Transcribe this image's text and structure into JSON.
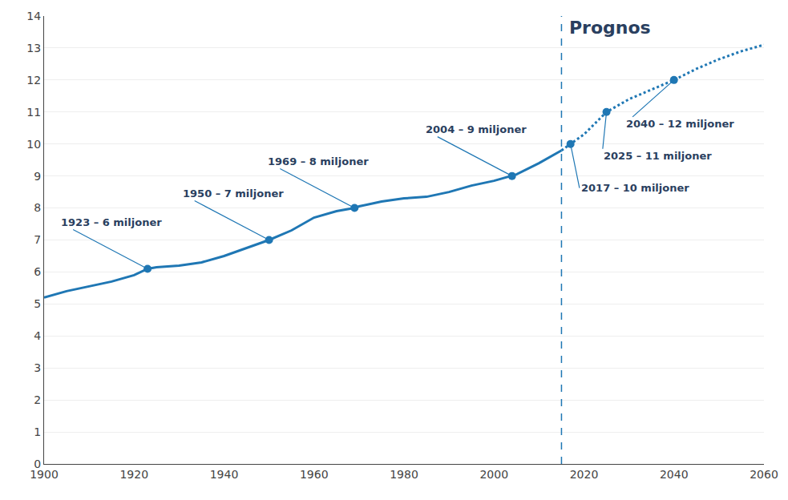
{
  "chart_data": {
    "type": "line",
    "xlim": [
      1900,
      2060
    ],
    "ylim": [
      0,
      14
    ],
    "xticks": [
      1900,
      1920,
      1940,
      1960,
      1980,
      2000,
      2020,
      2040,
      2060
    ],
    "yticks": [
      0,
      1,
      2,
      3,
      4,
      5,
      6,
      7,
      8,
      9,
      10,
      11,
      12,
      13,
      14
    ],
    "grid": "y",
    "series": [
      {
        "color": "#1f77b4",
        "line_style": "solid",
        "x": [
          1900,
          1905,
          1910,
          1915,
          1920,
          1923,
          1925,
          1930,
          1935,
          1940,
          1945,
          1950,
          1955,
          1960,
          1965,
          1969,
          1970,
          1975,
          1980,
          1985,
          1990,
          1995,
          2000,
          2004,
          2005,
          2010,
          2015
        ],
        "values": [
          5.2,
          5.4,
          5.55,
          5.7,
          5.9,
          6.1,
          6.15,
          6.2,
          6.3,
          6.5,
          6.75,
          7.0,
          7.3,
          7.7,
          7.9,
          8.0,
          8.05,
          8.2,
          8.3,
          8.35,
          8.5,
          8.7,
          8.85,
          9.0,
          9.05,
          9.4,
          9.8
        ]
      },
      {
        "color": "#1f77b4",
        "line_style": "dotted",
        "x": [
          2015,
          2017,
          2020,
          2025,
          2030,
          2035,
          2040,
          2045,
          2050,
          2055,
          2060
        ],
        "values": [
          9.8,
          10.0,
          10.3,
          11.0,
          11.4,
          11.7,
          12.0,
          12.35,
          12.65,
          12.9,
          13.1
        ]
      }
    ],
    "vertical_line": {
      "x": 2015,
      "label": "Prognos",
      "line_style": "dashed"
    },
    "annotations": [
      {
        "x": 1923,
        "y": 6.1,
        "text": "1923 – 6 miljoner"
      },
      {
        "x": 1950,
        "y": 7.0,
        "text": "1950 – 7 miljoner"
      },
      {
        "x": 1969,
        "y": 8.0,
        "text": "1969 – 8 miljoner"
      },
      {
        "x": 2004,
        "y": 9.0,
        "text": "2004 – 9 miljoner"
      },
      {
        "x": 2017,
        "y": 10.0,
        "text": "2017 – 10 miljoner"
      },
      {
        "x": 2025,
        "y": 11.0,
        "text": "2025 – 11 miljoner"
      },
      {
        "x": 2040,
        "y": 12.0,
        "text": "2040 – 12 miljoner"
      }
    ]
  }
}
